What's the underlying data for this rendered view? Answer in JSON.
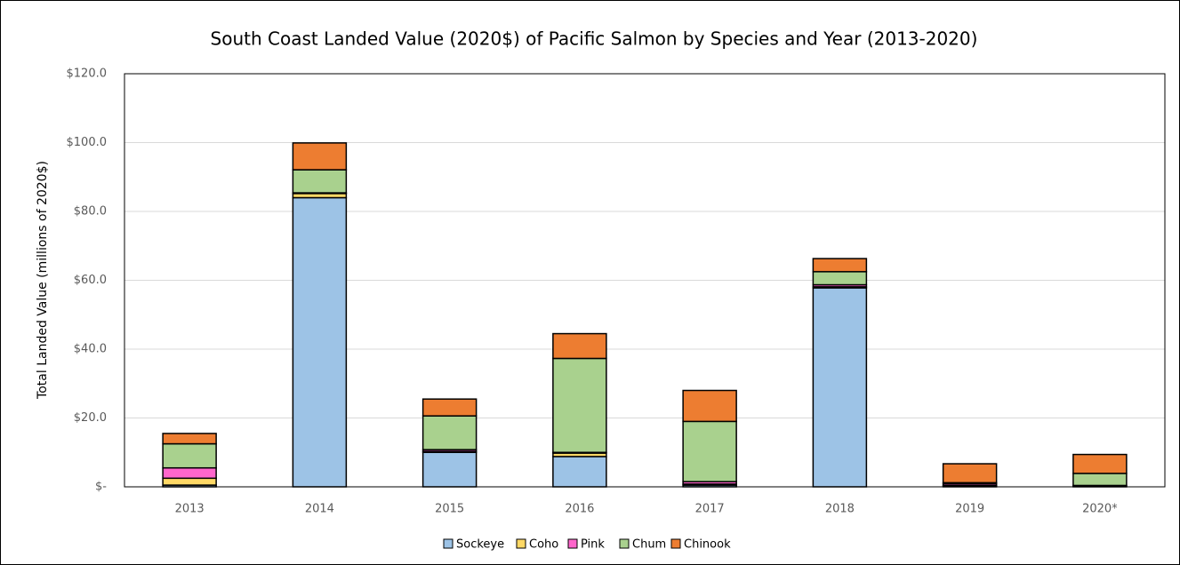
{
  "chart_data": {
    "type": "stacked_bar",
    "title": "South Coast Landed Value (2020$) of Pacific Salmon by Species and Year (2013-2020)",
    "y_label": "Total Landed Value (millions of 2020$)",
    "categories": [
      "2013",
      "2014",
      "2015",
      "2016",
      "2017",
      "2018",
      "2019",
      "2020*"
    ],
    "series": [
      {
        "name": "Sockeye",
        "color": "#9dc3e6",
        "values": [
          0.5,
          84,
          10,
          8.8,
          0.5,
          57.8,
          0.2,
          0.2
        ]
      },
      {
        "name": "Coho",
        "color": "#ffd966",
        "values": [
          2,
          1.2,
          0.3,
          1,
          0.3,
          0.3,
          0.2,
          0.2
        ]
      },
      {
        "name": "Pink",
        "color": "#ff66cc",
        "values": [
          3,
          0.2,
          0.5,
          0.2,
          0.7,
          0.6,
          0.5,
          0
        ]
      },
      {
        "name": "Chum",
        "color": "#a9d18e",
        "values": [
          7,
          6.7,
          9.8,
          27.3,
          17.5,
          3.8,
          0.3,
          3.5
        ]
      },
      {
        "name": "Chinook",
        "color": "#ed7d31",
        "values": [
          3,
          7.8,
          4.9,
          7.2,
          9,
          3.8,
          5.5,
          5.5
        ]
      }
    ],
    "ylim": [
      0,
      120
    ],
    "yticks": [
      {
        "value": 0,
        "label": "$-"
      },
      {
        "value": 20,
        "label": "$20.0"
      },
      {
        "value": 40,
        "label": "$40.0"
      },
      {
        "value": 60,
        "label": "$60.0"
      },
      {
        "value": 80,
        "label": "$80.0"
      },
      {
        "value": 100,
        "label": "$100.0"
      },
      {
        "value": 120,
        "label": "$120.0"
      }
    ],
    "grid": true,
    "legend": "bottom"
  }
}
